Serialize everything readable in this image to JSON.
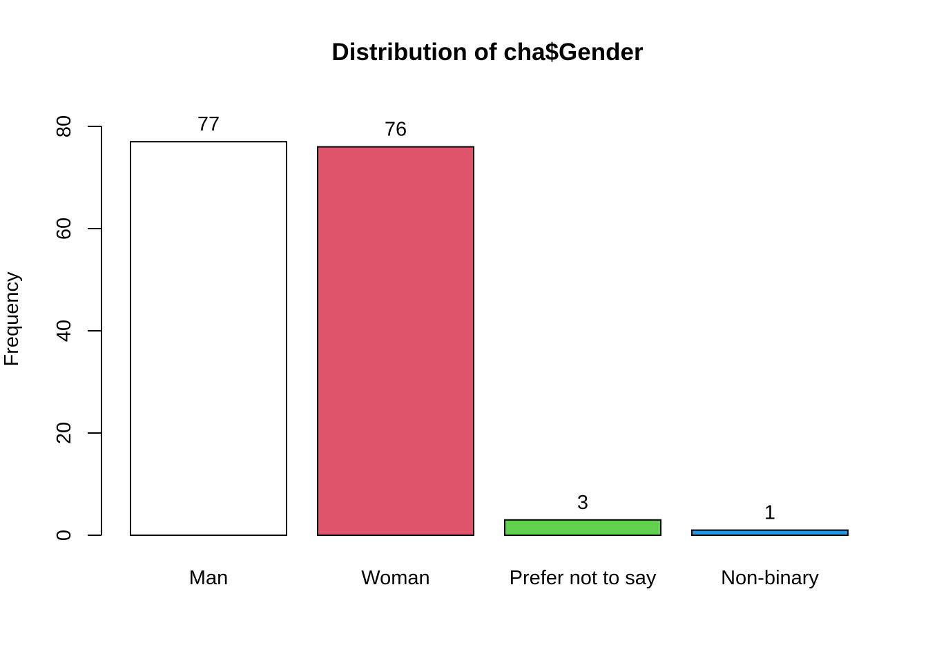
{
  "chart_data": {
    "type": "bar",
    "title": "Distribution of cha$Gender",
    "xlabel": "",
    "ylabel": "Frequency",
    "categories": [
      "Man",
      "Woman",
      "Prefer not to say",
      "Non-binary"
    ],
    "values": [
      77,
      76,
      3,
      1
    ],
    "data_labels": [
      "77",
      "76",
      "3",
      "1"
    ],
    "colors": [
      "#ffffff",
      "#df536b",
      "#61d04f",
      "#2297e6"
    ],
    "ylim": [
      0,
      80
    ],
    "yticks": [
      0,
      20,
      40,
      60,
      80
    ],
    "ytick_labels": [
      "0",
      "20",
      "40",
      "60",
      "80"
    ],
    "grid": false,
    "legend": "none"
  }
}
